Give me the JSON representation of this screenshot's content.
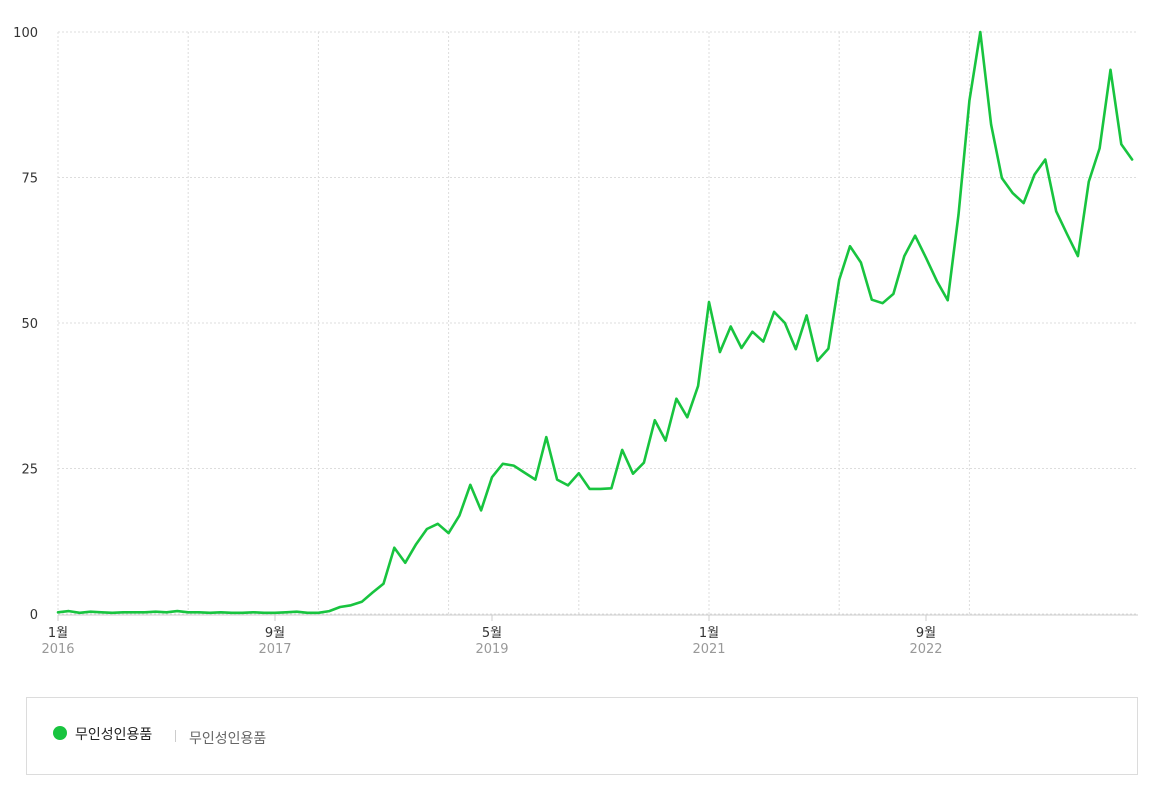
{
  "chart_data": {
    "type": "line",
    "title": "",
    "xlabel": "",
    "ylabel": "",
    "ylim": [
      0,
      100
    ],
    "yticks": [
      0,
      25,
      50,
      75,
      100
    ],
    "grid": true,
    "x_tick_labels": [
      {
        "month": "1월",
        "year": "2016"
      },
      {
        "month": "9월",
        "year": "2017"
      },
      {
        "month": "5월",
        "year": "2019"
      },
      {
        "month": "1월",
        "year": "2021"
      },
      {
        "month": "9월",
        "year": "2022"
      }
    ],
    "x_tick_dates": [
      "2016-01",
      "2017-09",
      "2019-05",
      "2021-01",
      "2022-09"
    ],
    "x_vertical_gridlines": [
      "2016-01",
      "2017-01",
      "2018-01",
      "2019-01",
      "2020-01",
      "2021-01",
      "2022-01",
      "2023-01"
    ],
    "x_start": "2016-01",
    "x_end": "2023-12",
    "series": [
      {
        "name": "무인성인용품",
        "color": "#18c43f",
        "values": [
          0.3,
          0.5,
          0.2,
          0.4,
          0.3,
          0.2,
          0.3,
          0.3,
          0.3,
          0.4,
          0.3,
          0.5,
          0.3,
          0.3,
          0.2,
          0.3,
          0.2,
          0.2,
          0.3,
          0.2,
          0.2,
          0.3,
          0.4,
          0.2,
          0.2,
          0.5,
          1.2,
          1.5,
          2.1,
          3.7,
          5.2,
          11.4,
          8.8,
          12.0,
          14.6,
          15.5,
          13.9,
          16.9,
          22.2,
          17.8,
          23.5,
          25.8,
          25.5,
          24.3,
          23.1,
          30.4,
          23.1,
          22.1,
          24.2,
          21.5,
          21.5,
          21.6,
          28.2,
          24.1,
          26.0,
          33.3,
          29.8,
          37.0,
          33.8,
          39.2,
          53.6,
          45.0,
          49.4,
          45.7,
          48.5,
          46.8,
          51.9,
          50.0,
          45.5,
          51.3,
          43.5,
          45.6,
          57.4,
          63.2,
          60.4,
          54.0,
          53.4,
          55.0,
          61.5,
          65.0,
          61.2,
          57.2,
          53.9,
          68.6,
          88.2,
          100.0,
          84.1,
          74.9,
          72.3,
          70.6,
          75.5,
          78.1,
          69.2,
          65.3,
          61.5,
          74.3,
          80.0,
          93.5,
          80.7,
          78.1
        ]
      }
    ],
    "legend": {
      "placement": "bottom",
      "name": "무인성인용품",
      "term": "무인성인용품"
    }
  }
}
